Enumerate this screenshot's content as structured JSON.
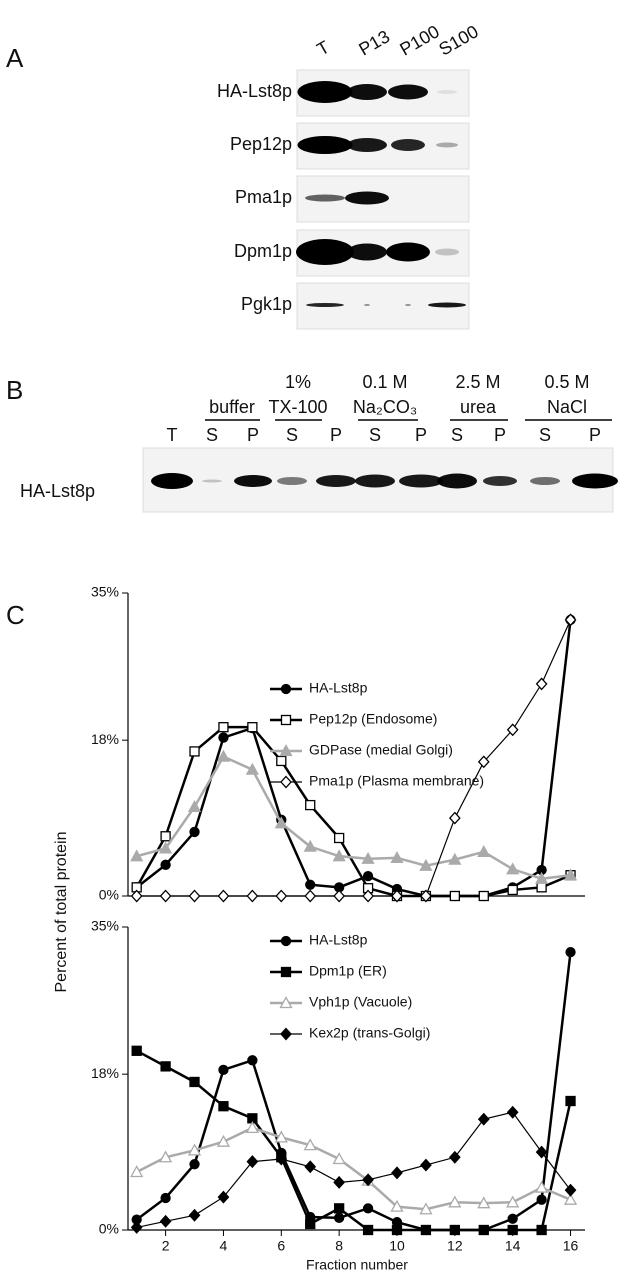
{
  "panel_labels": [
    "A",
    "B",
    "C"
  ],
  "blot_a": {
    "lanes": [
      "T",
      "P13",
      "P100",
      "S100"
    ],
    "rows": [
      "HA-Lst8p",
      "Pep12p",
      "Pma1p",
      "Dpm1p",
      "Pgk1p"
    ]
  },
  "blot_b": {
    "treatments": [
      [
        "buffer"
      ],
      [
        "1%",
        "TX-100"
      ],
      [
        "0.1 M",
        "Na₂CO₃"
      ],
      [
        "2.5 M",
        "urea"
      ],
      [
        "0.5 M",
        "NaCl"
      ]
    ],
    "lanes": [
      "T",
      "S",
      "P",
      "S",
      "P",
      "S",
      "P",
      "S",
      "P",
      "S",
      "P"
    ],
    "row": "HA-Lst8p"
  },
  "chart_data": [
    {
      "type": "line",
      "ylabel": "Percent of total protein",
      "x": [
        1,
        2,
        3,
        4,
        5,
        6,
        7,
        8,
        9,
        10,
        11,
        12,
        13,
        14,
        15,
        16
      ],
      "xlim": [
        0.7,
        16.5
      ],
      "ylim": [
        0,
        35
      ],
      "yticks": [
        {
          "value": 0,
          "label": "0%"
        },
        {
          "value": 18,
          "label": "18%"
        },
        {
          "value": 35,
          "label": "35%"
        }
      ],
      "series": [
        {
          "name": "HA-Lst8p",
          "color": "#000000",
          "marker": "circle",
          "filled": true,
          "line_width": 2.5,
          "values": [
            1.0,
            3.6,
            7.4,
            18.3,
            19.4,
            8.8,
            1.3,
            1.0,
            2.3,
            0.8,
            0,
            0,
            0,
            1.0,
            3.0,
            31.9
          ]
        },
        {
          "name": "Pep12p (Endosome)",
          "color": "#000000",
          "marker": "square",
          "filled": false,
          "line_width": 2.5,
          "values": [
            1.0,
            6.9,
            16.7,
            19.5,
            19.5,
            15.6,
            10.5,
            6.7,
            0.9,
            0,
            0,
            0,
            0,
            0.7,
            1.0,
            2.4
          ]
        },
        {
          "name": "GDPase (medial Golgi)",
          "color": "#aaaaaa",
          "marker": "triangle",
          "filled": true,
          "line_width": 2.5,
          "values": [
            4.6,
            5.5,
            10.3,
            16.1,
            14.6,
            8.4,
            5.7,
            4.6,
            4.3,
            4.4,
            3.5,
            4.2,
            5.1,
            3.1,
            2.0,
            2.4
          ]
        },
        {
          "name": "Pma1p (Plasma membrane)",
          "color": "#000000",
          "marker": "diamond",
          "filled": false,
          "line_width": 1.2,
          "values": [
            0,
            0,
            0,
            0,
            0,
            0,
            0,
            0,
            0,
            0,
            0,
            9.0,
            15.5,
            19.2,
            24.5,
            31.9
          ]
        }
      ]
    },
    {
      "type": "line",
      "xlabel": "Fraction number",
      "x": [
        1,
        2,
        3,
        4,
        5,
        6,
        7,
        8,
        9,
        10,
        11,
        12,
        13,
        14,
        15,
        16
      ],
      "xlim": [
        0.7,
        16.5
      ],
      "ylim": [
        0,
        35
      ],
      "xticks": [
        2,
        4,
        6,
        8,
        10,
        12,
        14,
        16
      ],
      "yticks": [
        {
          "value": 0,
          "label": "0%"
        },
        {
          "value": 18,
          "label": "18%"
        },
        {
          "value": 35,
          "label": "35%"
        }
      ],
      "series": [
        {
          "name": "HA-Lst8p",
          "color": "#000000",
          "marker": "circle",
          "filled": true,
          "line_width": 2.5,
          "values": [
            1.2,
            3.7,
            7.6,
            18.5,
            19.6,
            8.9,
            1.5,
            1.4,
            2.5,
            0.9,
            0,
            0,
            0,
            1.3,
            3.5,
            32.1
          ]
        },
        {
          "name": "Dpm1p (ER)",
          "color": "#000000",
          "marker": "square",
          "filled": true,
          "line_width": 2.5,
          "values": [
            20.7,
            18.9,
            17.1,
            14.3,
            12.9,
            8.4,
            0.7,
            2.5,
            0,
            0,
            0,
            0,
            0,
            0,
            0,
            14.9
          ]
        },
        {
          "name": "Vph1p (Vacuole)",
          "color": "#aaaaaa",
          "marker": "triangle",
          "filled": false,
          "line_width": 2.5,
          "values": [
            6.7,
            8.4,
            9.2,
            10.2,
            11.8,
            10.7,
            9.8,
            8.2,
            5.7,
            2.7,
            2.4,
            3.2,
            3.1,
            3.2,
            4.9,
            3.5
          ]
        },
        {
          "name": "Kex2p (trans-Golgi)",
          "color": "#000000",
          "marker": "diamond",
          "filled": true,
          "line_width": 1.2,
          "values": [
            0.3,
            1.0,
            1.7,
            3.8,
            7.9,
            8.2,
            7.3,
            5.5,
            5.8,
            6.6,
            7.5,
            8.4,
            12.8,
            13.6,
            9.0,
            4.6
          ]
        }
      ]
    }
  ]
}
